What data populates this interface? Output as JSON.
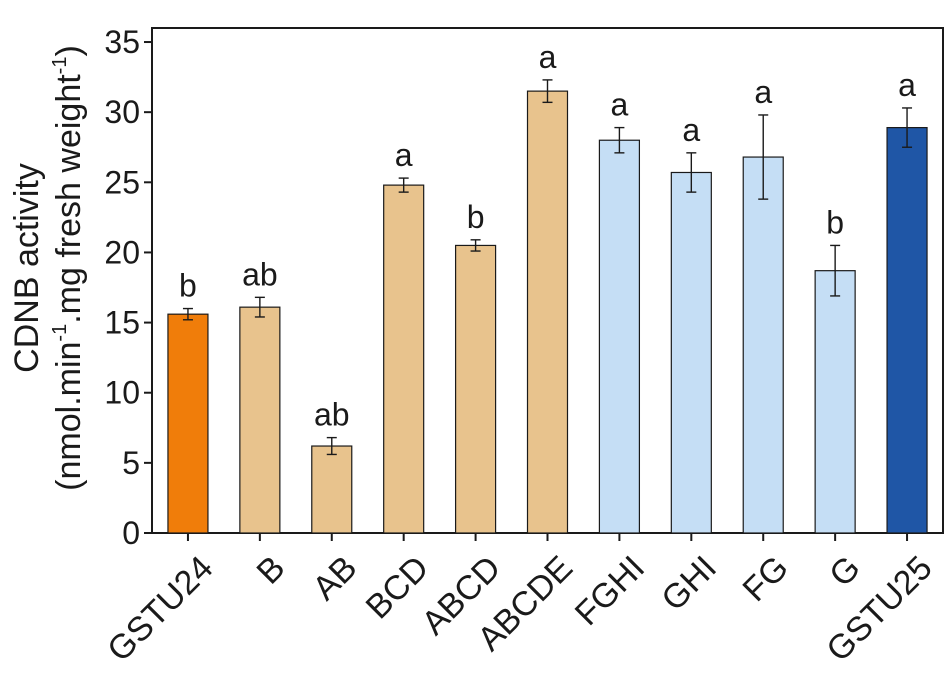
{
  "chart_data": {
    "type": "bar",
    "categories": [
      "GSTU24",
      "B",
      "AB",
      "BCD",
      "ABCD",
      "ABCDE",
      "FGHI",
      "GHI",
      "FG",
      "G",
      "GSTU25"
    ],
    "values": [
      15.6,
      16.1,
      6.2,
      24.8,
      20.5,
      31.5,
      28.0,
      25.7,
      26.8,
      18.7,
      28.9
    ],
    "errors": [
      0.4,
      0.7,
      0.6,
      0.5,
      0.4,
      0.8,
      0.9,
      1.4,
      3.0,
      1.8,
      1.4
    ],
    "significance_letters": [
      "b",
      "ab",
      "ab",
      "a",
      "b",
      "a",
      "a",
      "a",
      "a",
      "b",
      "a"
    ],
    "bar_colors": [
      "#f07d0a",
      "#e8c38d",
      "#e8c38d",
      "#e8c38d",
      "#e8c38d",
      "#e8c38d",
      "#c5def5",
      "#c5def5",
      "#c5def5",
      "#c5def5",
      "#1f56a6"
    ],
    "ylabel_line1": "CDNB activity",
    "ylabel_line2_parts": [
      "(nmol.min",
      "-1",
      ".mg fresh weight",
      "-1",
      ")"
    ],
    "xlabel": "",
    "ylim": [
      0,
      36
    ],
    "yticks": [
      0,
      5,
      10,
      15,
      20,
      25,
      30,
      35
    ],
    "grid": false,
    "legend": "none"
  }
}
